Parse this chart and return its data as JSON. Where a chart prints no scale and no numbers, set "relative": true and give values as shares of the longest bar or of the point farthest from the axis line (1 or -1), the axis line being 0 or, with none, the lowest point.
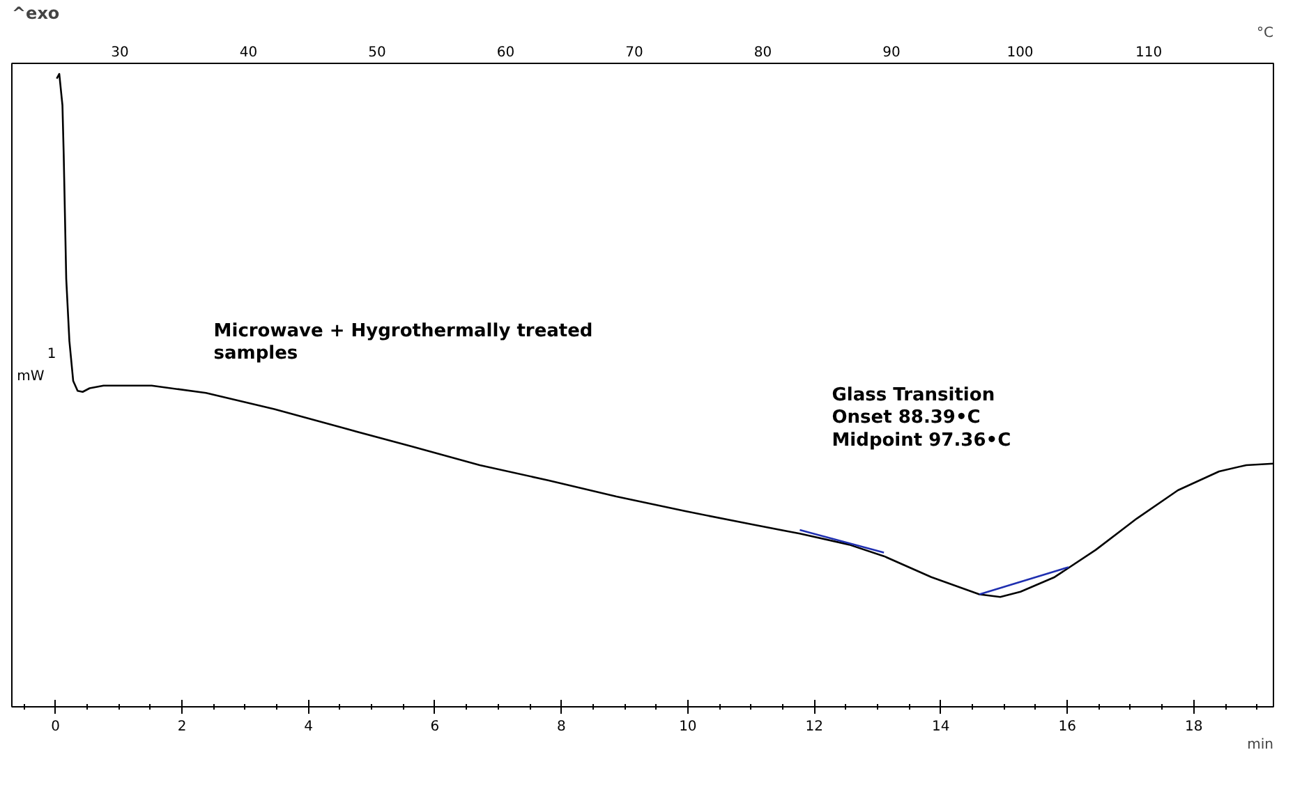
{
  "chart_data": {
    "type": "line",
    "relative": true,
    "xlabel": "min",
    "x2label": "°C",
    "xlim": [
      -0.69,
      19.26
    ],
    "xticks": [
      0,
      2,
      4,
      6,
      8,
      10,
      12,
      14,
      16,
      18
    ],
    "x2lim": [
      21.6,
      119.7
    ],
    "x2ticks": [
      30,
      40,
      50,
      60,
      70,
      80,
      90,
      100,
      110
    ],
    "grid": false,
    "marker": "none",
    "line_style": "solid",
    "tick_labels": "x",
    "annotations": [
      "^exo",
      "1",
      "mW",
      "Microwave + Hygrothermally treated samples",
      "Glass Transition",
      "Onset      88.39•C",
      "Midpoint  97.36•C"
    ],
    "series": [
      {
        "color": "#000000",
        "x": [
          0.02,
          0.06,
          0.11,
          0.13,
          0.17,
          0.22,
          0.28,
          0.35,
          0.43,
          0.54,
          0.76,
          1.52,
          2.38,
          3.46,
          4.55,
          5.63,
          6.71,
          7.79,
          8.87,
          9.96,
          11.04,
          11.77,
          12.55,
          13.1,
          13.85,
          14.61,
          14.94,
          15.26,
          15.8,
          16.45,
          17.1,
          17.75,
          18.4,
          18.83,
          19.26
        ],
        "values": [
          0.991,
          1.0,
          0.94,
          0.846,
          0.608,
          0.489,
          0.413,
          0.394,
          0.392,
          0.399,
          0.404,
          0.404,
          0.39,
          0.359,
          0.323,
          0.288,
          0.252,
          0.223,
          0.192,
          0.164,
          0.138,
          0.121,
          0.1,
          0.078,
          0.038,
          0.005,
          0.0,
          0.01,
          0.038,
          0.09,
          0.15,
          0.204,
          0.24,
          0.252,
          0.255
        ]
      },
      {
        "color": "#1f2fb0",
        "x": [
          11.77,
          13.1
        ],
        "values": [
          0.128,
          0.085
        ]
      },
      {
        "color": "#1f2fb0",
        "x": [
          14.61,
          16.02
        ],
        "values": [
          0.005,
          0.057
        ]
      }
    ]
  }
}
